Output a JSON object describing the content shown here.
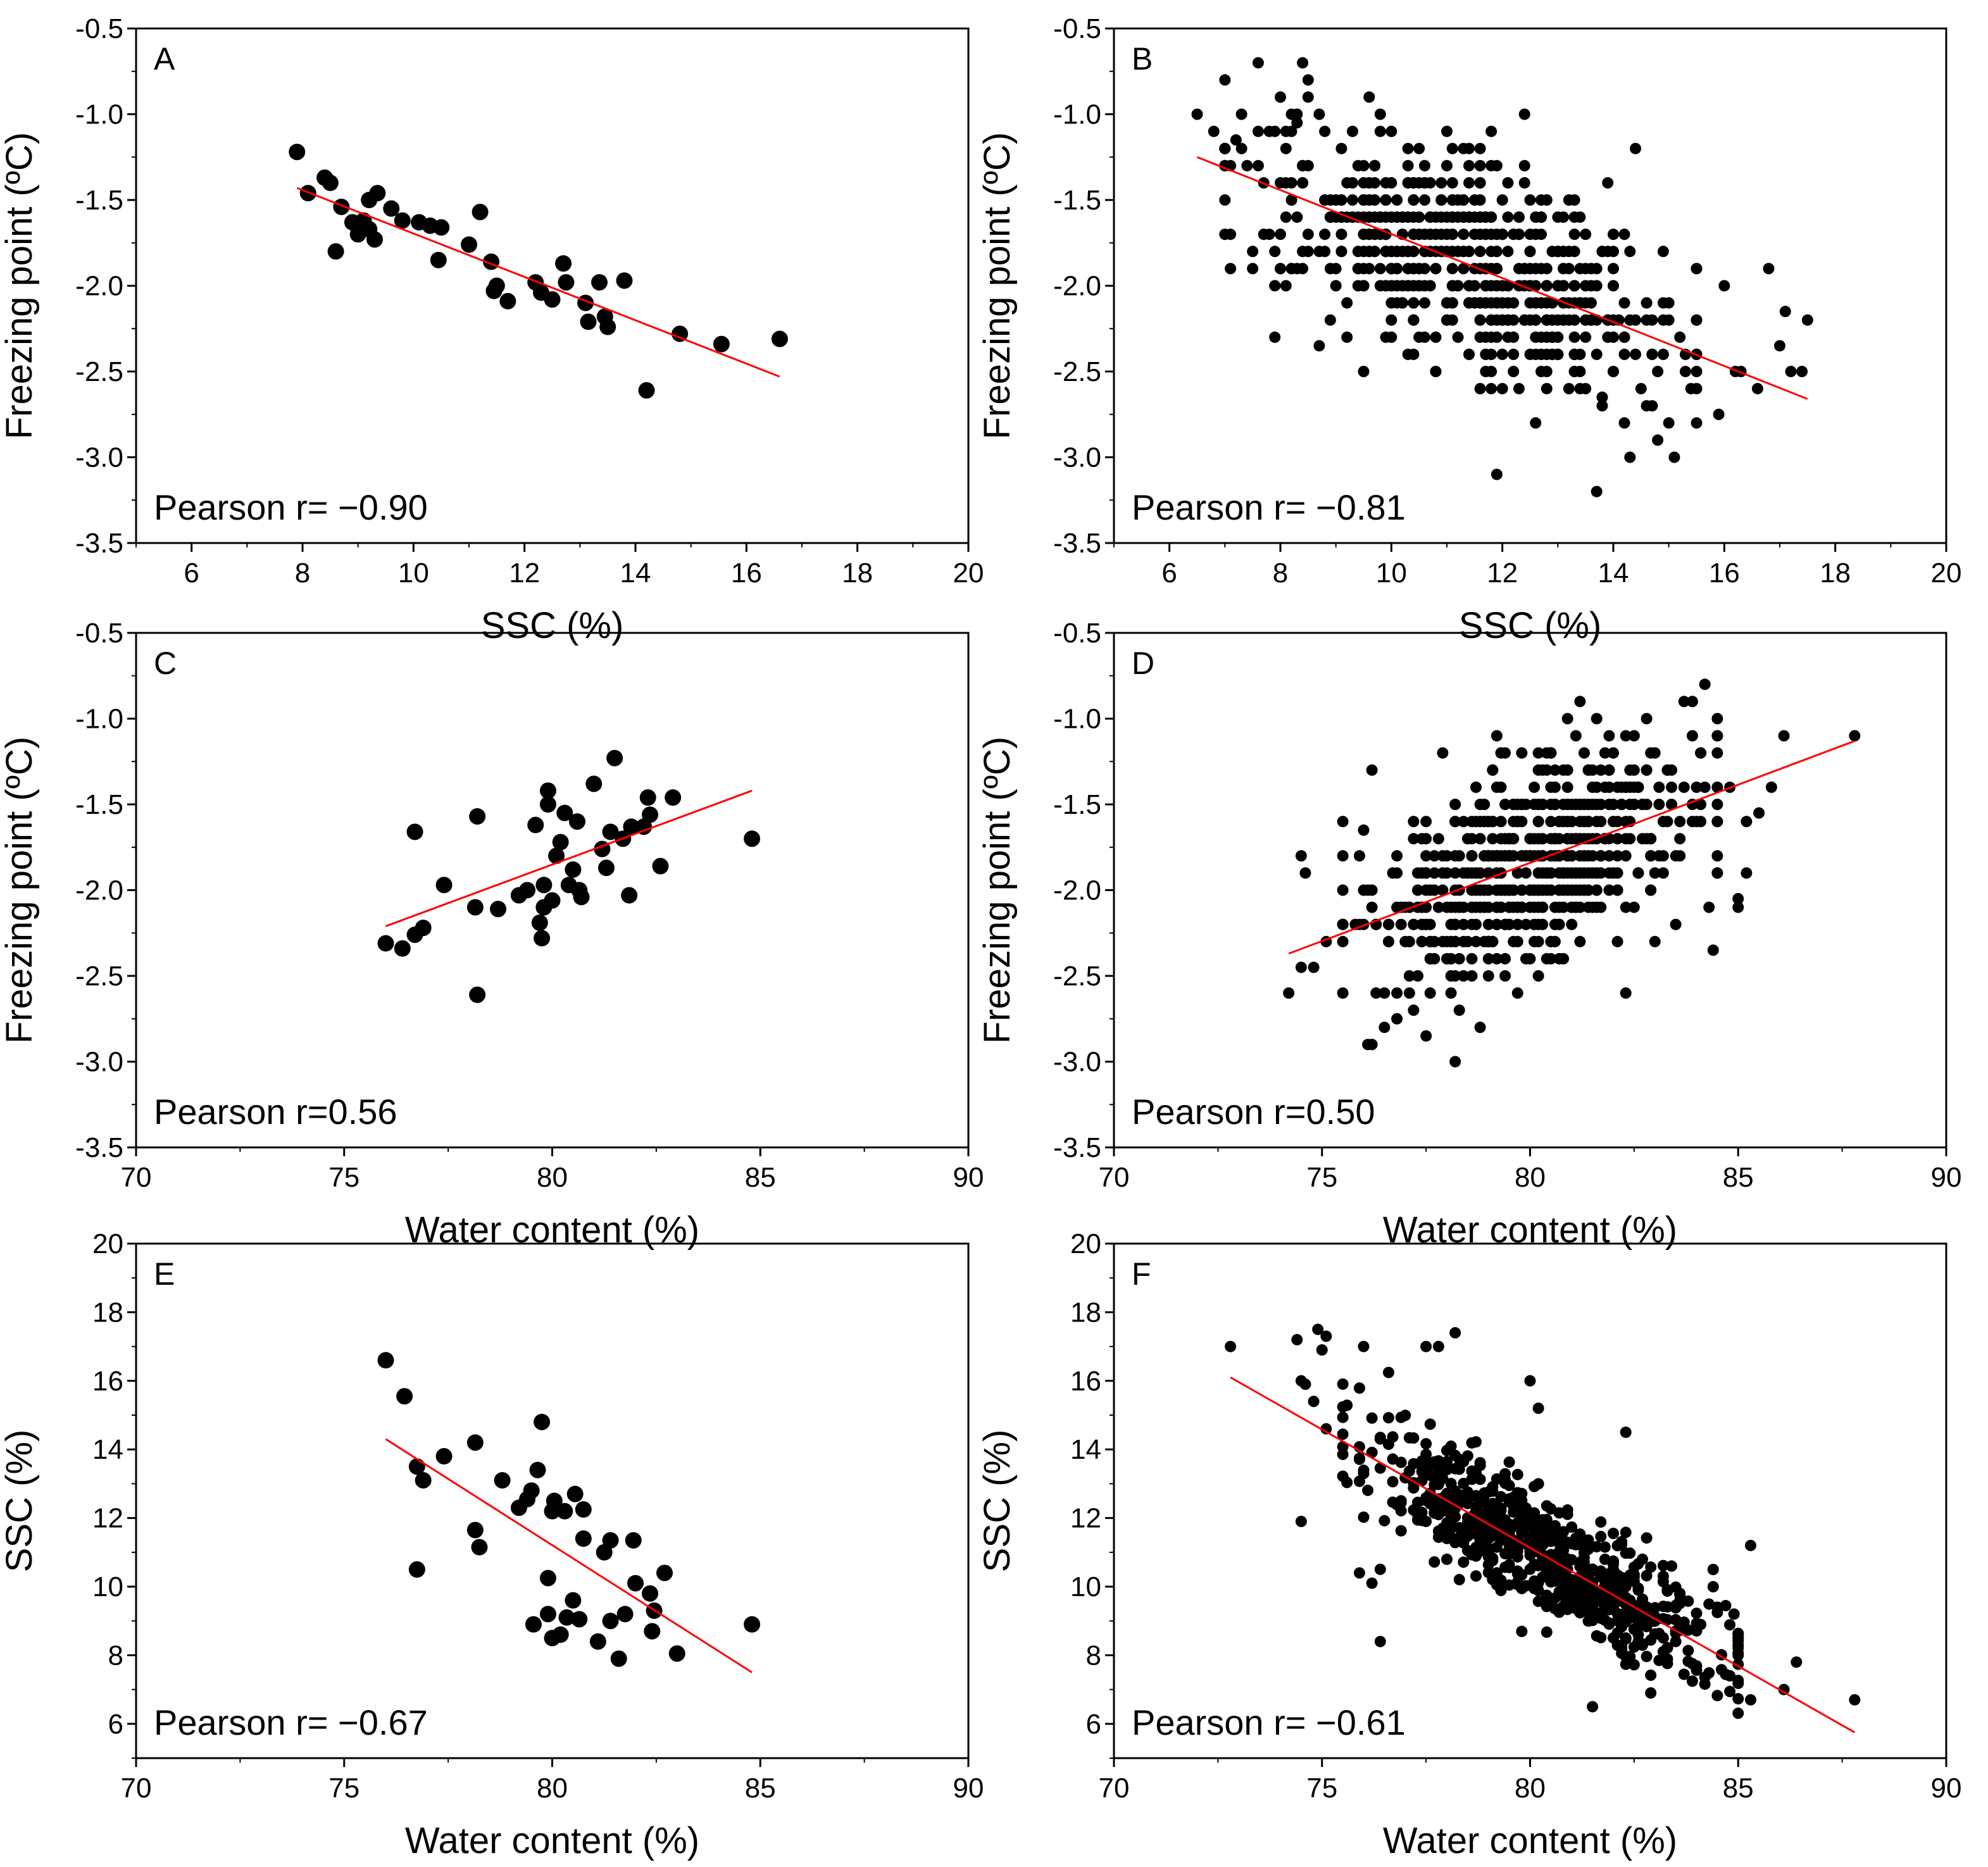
{
  "figure": {
    "colors": {
      "points": "#000000",
      "fit_line": "#ff0000",
      "axes": "#000000",
      "background": "#ffffff"
    }
  },
  "chart_data": [
    {
      "panel": "A",
      "type": "scatter",
      "xlabel": "SSC (%)",
      "ylabel": "Freezing point (ºC)",
      "xlim": [
        5,
        20
      ],
      "ylim": [
        -3.5,
        -0.5
      ],
      "xticks": [
        6,
        8,
        10,
        12,
        14,
        16,
        18,
        20
      ],
      "xtick_labels": [
        "6",
        "8",
        "10",
        "12",
        "14",
        "16",
        "18",
        "20"
      ],
      "yticks": [
        -3.5,
        -3.0,
        -2.5,
        -2.0,
        -1.5,
        -1.0,
        -0.5
      ],
      "ytick_labels": [
        "-3.5",
        "-3.0",
        "-2.5",
        "-2.0",
        "-1.5",
        "-1.0",
        "-0.5"
      ],
      "annotation": "Pearson r= −0.90",
      "fit_line": {
        "x": [
          7.9,
          16.6
        ],
        "y": [
          -1.43,
          -2.53
        ]
      },
      "points": [
        [
          7.9,
          -1.22
        ],
        [
          8.1,
          -1.46
        ],
        [
          8.4,
          -1.37
        ],
        [
          8.5,
          -1.4
        ],
        [
          8.6,
          -1.8
        ],
        [
          8.7,
          -1.54
        ],
        [
          8.9,
          -1.63
        ],
        [
          9.0,
          -1.7
        ],
        [
          9.1,
          -1.62
        ],
        [
          9.2,
          -1.5
        ],
        [
          9.3,
          -1.73
        ],
        [
          9.2,
          -1.67
        ],
        [
          9.35,
          -1.46
        ],
        [
          9.6,
          -1.55
        ],
        [
          9.8,
          -1.62
        ],
        [
          10.1,
          -1.63
        ],
        [
          10.3,
          -1.65
        ],
        [
          10.5,
          -1.66
        ],
        [
          11.0,
          -1.76
        ],
        [
          11.2,
          -1.57
        ],
        [
          10.45,
          -1.85
        ],
        [
          11.4,
          -1.86
        ],
        [
          11.45,
          -2.03
        ],
        [
          11.5,
          -2.0
        ],
        [
          11.7,
          -2.09
        ],
        [
          12.2,
          -1.98
        ],
        [
          12.3,
          -2.04
        ],
        [
          12.5,
          -2.08
        ],
        [
          12.7,
          -1.87
        ],
        [
          12.75,
          -1.98
        ],
        [
          13.1,
          -2.1
        ],
        [
          13.15,
          -2.21
        ],
        [
          13.35,
          -1.98
        ],
        [
          13.45,
          -2.18
        ],
        [
          13.5,
          -2.24
        ],
        [
          13.8,
          -1.97
        ],
        [
          14.2,
          -2.61
        ],
        [
          14.8,
          -2.28
        ],
        [
          15.55,
          -2.34
        ],
        [
          16.6,
          -2.31
        ]
      ]
    },
    {
      "panel": "B",
      "type": "scatter",
      "xlabel": "SSC (%)",
      "ylabel": "Freezing point (ºC)",
      "xlim": [
        5,
        20
      ],
      "ylim": [
        -3.5,
        -0.5
      ],
      "xticks": [
        6,
        8,
        10,
        12,
        14,
        16,
        18,
        20
      ],
      "xtick_labels": [
        "6",
        "8",
        "10",
        "12",
        "14",
        "16",
        "18",
        "20"
      ],
      "yticks": [
        -3.5,
        -3.0,
        -2.5,
        -2.0,
        -1.5,
        -1.0,
        -0.5
      ],
      "ytick_labels": [
        "-3.5",
        "-3.0",
        "-2.5",
        "-2.0",
        "-1.5",
        "-1.0",
        "-0.5"
      ],
      "annotation": "Pearson r= −0.81",
      "fit_line": {
        "x": [
          6.5,
          17.5
        ],
        "y": [
          -1.25,
          -2.66
        ]
      },
      "points": [
        [
          6.5,
          -1.0
        ],
        [
          6.8,
          -1.1
        ],
        [
          7.0,
          -1.2
        ],
        [
          7.2,
          -1.15
        ],
        [
          7.1,
          -1.3
        ],
        [
          7.6,
          -1.3
        ],
        [
          7.9,
          -1.1
        ],
        [
          8.3,
          -1.05
        ],
        [
          9.3,
          -1.1
        ],
        [
          10.0,
          -1.1
        ],
        [
          11.0,
          -1.1
        ],
        [
          11.4,
          -1.2
        ],
        [
          11.8,
          -1.1
        ],
        [
          14.4,
          -1.2
        ],
        [
          7.5,
          -1.9
        ],
        [
          7.9,
          -2.3
        ],
        [
          8.7,
          -2.35
        ],
        [
          9.5,
          -2.5
        ],
        [
          8.9,
          -2.2
        ],
        [
          9.2,
          -2.3
        ],
        [
          10.0,
          -2.2
        ],
        [
          16.0,
          -2.0
        ],
        [
          16.8,
          -1.9
        ],
        [
          17.5,
          -2.2
        ],
        [
          17.1,
          -2.15
        ],
        [
          17.0,
          -2.35
        ],
        [
          17.2,
          -2.5
        ],
        [
          17.4,
          -2.5
        ],
        [
          16.3,
          -2.5
        ],
        [
          16.6,
          -2.6
        ],
        [
          16.2,
          -2.5
        ],
        [
          15.9,
          -2.75
        ],
        [
          14.8,
          -2.9
        ],
        [
          14.3,
          -3.0
        ],
        [
          14.5,
          -2.6
        ],
        [
          14.2,
          -2.8
        ],
        [
          13.8,
          -2.65
        ],
        [
          15.2,
          -2.3
        ],
        [
          15.5,
          -2.4
        ]
      ],
      "cloud": {
        "x_range": [
          7.0,
          15.5
        ],
        "fit_slope": -0.128,
        "fit_intercept": -0.42,
        "y_spread": 0.55,
        "count": 620,
        "y_step": 0.1
      }
    },
    {
      "panel": "C",
      "type": "scatter",
      "xlabel": "Water content (%)",
      "ylabel": "Freezing point (ºC)",
      "xlim": [
        70,
        90
      ],
      "ylim": [
        -3.5,
        -0.5
      ],
      "xticks": [
        70,
        75,
        80,
        85,
        90
      ],
      "xtick_labels": [
        "70",
        "75",
        "80",
        "85",
        "90"
      ],
      "yticks": [
        -3.5,
        -3.0,
        -2.5,
        -2.0,
        -1.5,
        -1.0,
        -0.5
      ],
      "ytick_labels": [
        "-3.5",
        "-3.0",
        "-2.5",
        "-2.0",
        "-1.5",
        "-1.0",
        "-0.5"
      ],
      "annotation": "Pearson r=0.56",
      "fit_line": {
        "x": [
          76.0,
          84.8
        ],
        "y": [
          -2.21,
          -1.42
        ]
      },
      "points": [
        [
          76.0,
          -2.31
        ],
        [
          76.4,
          -2.34
        ],
        [
          76.7,
          -1.66
        ],
        [
          76.7,
          -2.26
        ],
        [
          76.9,
          -2.22
        ],
        [
          77.4,
          -1.97
        ],
        [
          78.2,
          -1.57
        ],
        [
          78.15,
          -2.1
        ],
        [
          78.2,
          -2.61
        ],
        [
          78.7,
          -2.11
        ],
        [
          79.2,
          -2.03
        ],
        [
          79.4,
          -2.0
        ],
        [
          79.6,
          -1.62
        ],
        [
          79.7,
          -2.19
        ],
        [
          79.75,
          -2.28
        ],
        [
          79.8,
          -1.97
        ],
        [
          79.8,
          -2.1
        ],
        [
          79.9,
          -1.5
        ],
        [
          79.9,
          -1.42
        ],
        [
          80.0,
          -2.06
        ],
        [
          80.1,
          -1.8
        ],
        [
          80.2,
          -1.72
        ],
        [
          80.3,
          -1.55
        ],
        [
          80.4,
          -1.97
        ],
        [
          80.5,
          -1.88
        ],
        [
          80.6,
          -1.6
        ],
        [
          80.7,
          -2.04
        ],
        [
          80.65,
          -2.0
        ],
        [
          81.0,
          -1.38
        ],
        [
          81.2,
          -1.76
        ],
        [
          81.3,
          -1.87
        ],
        [
          81.4,
          -1.66
        ],
        [
          81.5,
          -1.23
        ],
        [
          81.7,
          -1.7
        ],
        [
          81.85,
          -2.03
        ],
        [
          81.9,
          -1.63
        ],
        [
          82.2,
          -1.63
        ],
        [
          82.3,
          -1.46
        ],
        [
          82.35,
          -1.56
        ],
        [
          82.6,
          -1.86
        ],
        [
          82.9,
          -1.46
        ],
        [
          84.8,
          -1.7
        ]
      ]
    },
    {
      "panel": "D",
      "type": "scatter",
      "xlabel": "Water content (%)",
      "ylabel": "Freezing point (ºC)",
      "xlim": [
        70,
        90
      ],
      "ylim": [
        -3.5,
        -0.5
      ],
      "xticks": [
        70,
        75,
        80,
        85,
        90
      ],
      "xtick_labels": [
        "70",
        "75",
        "80",
        "85",
        "90"
      ],
      "yticks": [
        -3.5,
        -3.0,
        -2.5,
        -2.0,
        -1.5,
        -1.0,
        -0.5
      ],
      "ytick_labels": [
        "-3.5",
        "-3.0",
        "-2.5",
        "-2.0",
        "-1.5",
        "-1.0",
        "-0.5"
      ],
      "annotation": "Pearson r=0.50",
      "fit_line": {
        "x": [
          74.2,
          87.8
        ],
        "y": [
          -2.37,
          -1.13
        ]
      },
      "points": [
        [
          74.2,
          -2.6
        ],
        [
          74.5,
          -2.45
        ],
        [
          74.8,
          -2.45
        ],
        [
          74.6,
          -1.9
        ],
        [
          74.5,
          -1.8
        ],
        [
          75.1,
          -2.3
        ],
        [
          76.2,
          -1.3
        ],
        [
          76.0,
          -1.65
        ],
        [
          76.2,
          -2.9
        ],
        [
          76.8,
          -2.75
        ],
        [
          77.5,
          -2.85
        ],
        [
          78.2,
          -3.0
        ],
        [
          78.1,
          -2.6
        ],
        [
          78.8,
          -2.8
        ],
        [
          77.9,
          -1.2
        ],
        [
          79.2,
          -1.1
        ],
        [
          82.3,
          -2.6
        ],
        [
          84.4,
          -2.35
        ],
        [
          85.0,
          -2.1
        ],
        [
          85.0,
          -2.05
        ],
        [
          85.2,
          -1.9
        ],
        [
          85.2,
          -1.6
        ],
        [
          85.5,
          -1.55
        ],
        [
          85.8,
          -1.4
        ],
        [
          86.1,
          -1.1
        ],
        [
          87.8,
          -1.1
        ],
        [
          81.6,
          -1.0
        ],
        [
          84.8,
          -1.4
        ],
        [
          84.5,
          -1.2
        ]
      ],
      "cloud": {
        "x_range": [
          75.5,
          84.5
        ],
        "fit_slope": 0.0912,
        "fit_intercept": -9.14,
        "y_spread": 0.55,
        "count": 620,
        "y_step": 0.1
      }
    },
    {
      "panel": "E",
      "type": "scatter",
      "xlabel": "Water content (%)",
      "ylabel": "SSC (%)",
      "xlim": [
        70,
        90
      ],
      "ylim": [
        5,
        20
      ],
      "xticks": [
        70,
        75,
        80,
        85,
        90
      ],
      "xtick_labels": [
        "70",
        "75",
        "80",
        "85",
        "90"
      ],
      "yticks": [
        6,
        8,
        10,
        12,
        14,
        16,
        18,
        20
      ],
      "ytick_labels": [
        "6",
        "8",
        "10",
        "12",
        "14",
        "16",
        "18",
        "20"
      ],
      "annotation": "Pearson r= −0.67",
      "fit_line": {
        "x": [
          76.0,
          84.8
        ],
        "y": [
          14.3,
          7.5
        ]
      },
      "points": [
        [
          76.0,
          16.6
        ],
        [
          76.45,
          15.55
        ],
        [
          76.75,
          10.5
        ],
        [
          76.75,
          13.5
        ],
        [
          76.9,
          13.1
        ],
        [
          77.4,
          13.8
        ],
        [
          78.15,
          14.2
        ],
        [
          78.15,
          11.65
        ],
        [
          78.25,
          11.15
        ],
        [
          78.8,
          13.1
        ],
        [
          79.2,
          12.3
        ],
        [
          79.4,
          12.55
        ],
        [
          79.5,
          12.8
        ],
        [
          79.55,
          8.9
        ],
        [
          79.65,
          13.4
        ],
        [
          79.75,
          14.8
        ],
        [
          79.9,
          10.25
        ],
        [
          79.9,
          9.2
        ],
        [
          80.0,
          12.2
        ],
        [
          80.0,
          8.5
        ],
        [
          80.05,
          12.5
        ],
        [
          80.2,
          8.6
        ],
        [
          80.3,
          12.2
        ],
        [
          80.35,
          9.1
        ],
        [
          80.5,
          9.6
        ],
        [
          80.55,
          12.7
        ],
        [
          80.65,
          9.05
        ],
        [
          80.75,
          12.25
        ],
        [
          80.75,
          11.4
        ],
        [
          81.1,
          8.4
        ],
        [
          81.25,
          11.0
        ],
        [
          81.4,
          11.35
        ],
        [
          81.4,
          9.0
        ],
        [
          81.6,
          7.9
        ],
        [
          81.75,
          9.2
        ],
        [
          81.95,
          11.35
        ],
        [
          82.0,
          10.1
        ],
        [
          82.35,
          9.8
        ],
        [
          82.4,
          8.7
        ],
        [
          82.45,
          9.3
        ],
        [
          82.7,
          10.4
        ],
        [
          83.0,
          8.05
        ],
        [
          84.8,
          8.9
        ]
      ]
    },
    {
      "panel": "F",
      "type": "scatter",
      "xlabel": "Water content (%)",
      "ylabel": "SSC (%)",
      "xlim": [
        70,
        90
      ],
      "ylim": [
        5,
        20
      ],
      "xticks": [
        70,
        75,
        80,
        85,
        90
      ],
      "xtick_labels": [
        "70",
        "75",
        "80",
        "85",
        "90"
      ],
      "yticks": [
        6,
        8,
        10,
        12,
        14,
        16,
        18,
        20
      ],
      "ytick_labels": [
        "6",
        "8",
        "10",
        "12",
        "14",
        "16",
        "18",
        "20"
      ],
      "annotation": "Pearson r= −0.61",
      "fit_line": {
        "x": [
          72.8,
          87.8
        ],
        "y": [
          16.1,
          5.75
        ]
      },
      "points": [
        [
          72.8,
          17.0
        ],
        [
          74.4,
          17.2
        ],
        [
          74.5,
          16.0
        ],
        [
          74.9,
          17.5
        ],
        [
          75.1,
          17.3
        ],
        [
          75.0,
          16.9
        ],
        [
          76.0,
          17.0
        ],
        [
          74.6,
          15.9
        ],
        [
          74.8,
          15.4
        ],
        [
          74.5,
          11.9
        ],
        [
          75.1,
          14.6
        ],
        [
          75.9,
          10.4
        ],
        [
          76.2,
          10.1
        ],
        [
          76.4,
          8.4
        ],
        [
          86.4,
          7.8
        ],
        [
          86.1,
          7.0
        ],
        [
          87.8,
          6.7
        ],
        [
          85.3,
          6.7
        ],
        [
          85.3,
          11.2
        ],
        [
          84.9,
          9.2
        ],
        [
          85.0,
          8.3
        ],
        [
          84.4,
          10.5
        ],
        [
          84.8,
          7.4
        ],
        [
          83.4,
          10.6
        ],
        [
          82.3,
          14.5
        ],
        [
          80.0,
          16.0
        ],
        [
          80.2,
          15.2
        ],
        [
          78.2,
          17.4
        ],
        [
          77.8,
          17.0
        ],
        [
          77.5,
          17.0
        ],
        [
          81.5,
          6.5
        ],
        [
          82.9,
          6.9
        ]
      ],
      "cloud": {
        "x_range": [
          75.5,
          85.0
        ],
        "fit_slope": -0.69,
        "fit_intercept": 66.33,
        "y_spread": 1.6,
        "count": 720,
        "y_step": 0
      }
    }
  ]
}
